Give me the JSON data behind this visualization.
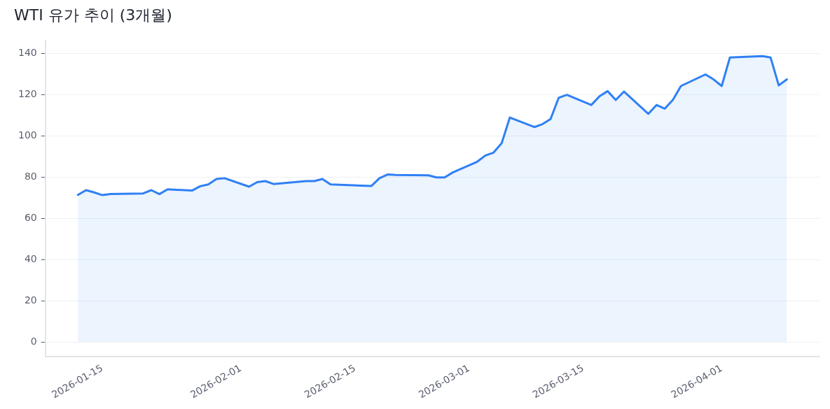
{
  "chart_data": {
    "type": "area",
    "title": "WTI 유가 추이 (3개월)",
    "x": [
      "2026-01-12",
      "2026-01-13",
      "2026-01-14",
      "2026-01-15",
      "2026-01-16",
      "2026-01-20",
      "2026-01-21",
      "2026-01-22",
      "2026-01-23",
      "2026-01-26",
      "2026-01-27",
      "2026-01-28",
      "2026-01-29",
      "2026-01-30",
      "2026-02-02",
      "2026-02-03",
      "2026-02-04",
      "2026-02-05",
      "2026-02-09",
      "2026-02-10",
      "2026-02-11",
      "2026-02-12",
      "2026-02-17",
      "2026-02-18",
      "2026-02-19",
      "2026-02-20",
      "2026-02-24",
      "2026-02-25",
      "2026-02-26",
      "2026-02-27",
      "2026-03-02",
      "2026-03-03",
      "2026-03-04",
      "2026-03-05",
      "2026-03-06",
      "2026-03-09",
      "2026-03-10",
      "2026-03-11",
      "2026-03-12",
      "2026-03-13",
      "2026-03-16",
      "2026-03-17",
      "2026-03-18",
      "2026-03-19",
      "2026-03-20",
      "2026-03-23",
      "2026-03-24",
      "2026-03-25",
      "2026-03-26",
      "2026-03-27",
      "2026-03-30",
      "2026-03-31",
      "2026-04-01",
      "2026-04-02",
      "2026-04-06",
      "2026-04-07",
      "2026-04-08",
      "2026-04-09"
    ],
    "series": [
      {
        "color": "#2f80f5",
        "values": [
          71.3,
          73.6,
          72.5,
          71.2,
          71.7,
          72.0,
          73.6,
          71.7,
          74.0,
          73.4,
          75.5,
          76.4,
          79.0,
          79.4,
          75.3,
          77.5,
          78.0,
          76.6,
          78.0,
          78.0,
          79.0,
          76.4,
          75.6,
          79.4,
          81.2,
          81.0,
          80.8,
          79.8,
          79.8,
          82.2,
          87.4,
          90.4,
          91.8,
          96.4,
          108.8,
          104.2,
          105.6,
          108.1,
          118.4,
          119.8,
          114.9,
          119.1,
          121.6,
          117.3,
          121.4,
          110.6,
          114.9,
          113.1,
          117.3,
          124.1,
          129.7,
          127.3,
          124.1,
          137.9,
          138.6,
          137.9,
          124.4,
          127.3
        ]
      }
    ],
    "xlim": [
      "2026-01-08",
      "2026-04-13"
    ],
    "xticks": [
      "2026-01-15",
      "2026-02-01",
      "2026-02-15",
      "2026-03-01",
      "2026-03-15",
      "2026-04-01"
    ],
    "ylim": [
      -7,
      146
    ],
    "yticks": [
      0,
      20,
      40,
      60,
      80,
      100,
      120,
      140
    ],
    "grid": "y",
    "legend": false,
    "marker": "none",
    "line_style": "solid"
  }
}
